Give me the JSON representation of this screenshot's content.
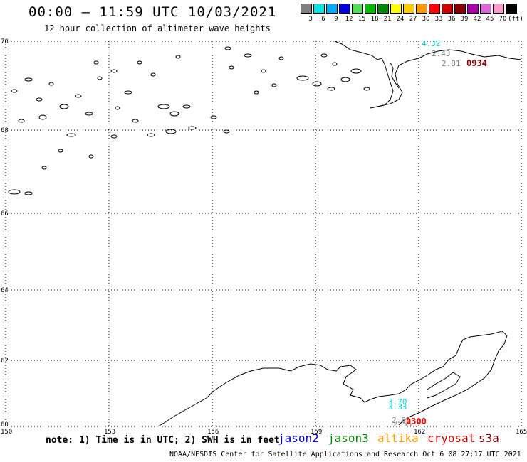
{
  "header": {
    "title": "00:00 – 11:59 UTC 10/03/2021",
    "subtitle": "12 hour collection of altimeter wave heights"
  },
  "legend_scale": {
    "labels": [
      "3",
      "6",
      "9",
      "12",
      "15",
      "18",
      "21",
      "24",
      "27",
      "30",
      "33",
      "36",
      "39",
      "42",
      "45",
      "70",
      "(ft)"
    ],
    "colors": [
      "#808080",
      "#00e6e6",
      "#00aaff",
      "#0000dd",
      "#55dd55",
      "#00bb00",
      "#008800",
      "#ffff00",
      "#ffcc00",
      "#ff9900",
      "#ff0000",
      "#cc0000",
      "#880000",
      "#aa00aa",
      "#dd66dd",
      "#ff99cc",
      "#000000"
    ]
  },
  "axes": {
    "lat_labels": [
      "70",
      "68",
      "66",
      "64",
      "62",
      "60"
    ],
    "lon_labels": [
      "150",
      "153",
      "156",
      "159",
      "162",
      "165"
    ]
  },
  "observations": [
    {
      "value": "4.32",
      "color": "#00dddd"
    },
    {
      "value": "2.43",
      "color": "#808080"
    },
    {
      "value": "2.81",
      "color": "#808080"
    },
    {
      "value": "0934",
      "color": "#880000"
    },
    {
      "value": "3.70",
      "color": "#00dddd"
    },
    {
      "value": "3.33",
      "color": "#00dddd"
    },
    {
      "value": "2.65",
      "color": "#808080"
    },
    {
      "value": "2.55",
      "color": "#808080"
    },
    {
      "value": "0300",
      "color": "#ff0000"
    }
  ],
  "footer": {
    "note": "note: 1) Time is in UTC; 2) SWH is in feet",
    "satellites": [
      {
        "name": "jason2",
        "color": "#0000dd"
      },
      {
        "name": "jason3",
        "color": "#008800"
      },
      {
        "name": "altika",
        "color": "#ff9900"
      },
      {
        "name": "cryosat",
        "color": "#dd0000"
      },
      {
        "name": "s3a",
        "color": "#880000"
      }
    ],
    "credit": "NOAA/NESDIS Center for Satellite Applications and Research   Oct  6 08:27:17 UTC 2021"
  }
}
